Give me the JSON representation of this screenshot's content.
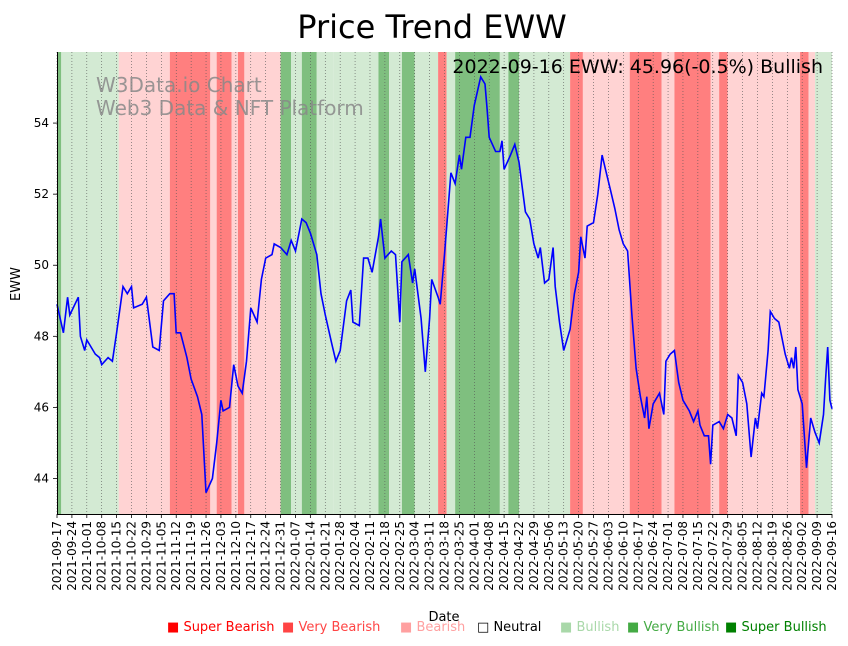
{
  "chart_data": {
    "type": "line",
    "title": "Price Trend EWW",
    "annotation": "2022-09-16 EWW: 45.96(-0.5%) Bullish",
    "watermark_line1": "W3Data.io Chart",
    "watermark_line2": "Web3 Data & NFT Platform",
    "xlabel": "Date",
    "ylabel": "EWW",
    "ylim": [
      43.0,
      56.0
    ],
    "y_ticks": [
      44,
      46,
      48,
      50,
      52,
      54
    ],
    "x_range": [
      "2021-09-17",
      "2022-09-16"
    ],
    "x_ticks": [
      "2021-09-17",
      "2021-09-24",
      "2021-10-01",
      "2021-10-08",
      "2021-10-15",
      "2021-10-22",
      "2021-10-29",
      "2021-11-05",
      "2021-11-12",
      "2021-11-19",
      "2021-11-26",
      "2021-12-03",
      "2021-12-10",
      "2021-12-17",
      "2021-12-24",
      "2021-12-31",
      "2022-01-07",
      "2022-01-14",
      "2022-01-21",
      "2022-01-28",
      "2022-02-04",
      "2022-02-11",
      "2022-02-18",
      "2022-02-25",
      "2022-03-04",
      "2022-03-11",
      "2022-03-18",
      "2022-03-25",
      "2022-04-01",
      "2022-04-08",
      "2022-04-15",
      "2022-04-22",
      "2022-04-29",
      "2022-05-06",
      "2022-05-13",
      "2022-05-20",
      "2022-05-27",
      "2022-06-03",
      "2022-06-10",
      "2022-06-17",
      "2022-06-24",
      "2022-07-01",
      "2022-07-08",
      "2022-07-15",
      "2022-07-22",
      "2022-07-29",
      "2022-08-05",
      "2022-08-12",
      "2022-08-19",
      "2022-08-26",
      "2022-09-02",
      "2022-09-09",
      "2022-09-16"
    ],
    "series": [
      {
        "name": "EWW",
        "color": "#0000ff",
        "points": [
          [
            "2021-09-17",
            48.9
          ],
          [
            "2021-09-20",
            48.1
          ],
          [
            "2021-09-22",
            49.1
          ],
          [
            "2021-09-23",
            48.6
          ],
          [
            "2021-09-27",
            49.1
          ],
          [
            "2021-09-28",
            48.0
          ],
          [
            "2021-09-30",
            47.6
          ],
          [
            "2021-10-01",
            47.9
          ],
          [
            "2021-10-05",
            47.5
          ],
          [
            "2021-10-07",
            47.4
          ],
          [
            "2021-10-08",
            47.2
          ],
          [
            "2021-10-11",
            47.4
          ],
          [
            "2021-10-13",
            47.3
          ],
          [
            "2021-10-15",
            48.1
          ],
          [
            "2021-10-18",
            49.4
          ],
          [
            "2021-10-20",
            49.2
          ],
          [
            "2021-10-22",
            49.4
          ],
          [
            "2021-10-23",
            48.8
          ],
          [
            "2021-10-27",
            48.9
          ],
          [
            "2021-10-29",
            49.1
          ],
          [
            "2021-11-01",
            47.7
          ],
          [
            "2021-11-04",
            47.6
          ],
          [
            "2021-11-06",
            49.0
          ],
          [
            "2021-11-09",
            49.2
          ],
          [
            "2021-11-11",
            49.2
          ],
          [
            "2021-11-12",
            48.1
          ],
          [
            "2021-11-14",
            48.1
          ],
          [
            "2021-11-17",
            47.4
          ],
          [
            "2021-11-19",
            46.8
          ],
          [
            "2021-11-22",
            46.3
          ],
          [
            "2021-11-24",
            45.8
          ],
          [
            "2021-11-26",
            43.6
          ],
          [
            "2021-11-29",
            44.0
          ],
          [
            "2021-12-01",
            45.0
          ],
          [
            "2021-12-03",
            46.2
          ],
          [
            "2021-12-04",
            45.9
          ],
          [
            "2021-12-07",
            46.0
          ],
          [
            "2021-12-09",
            47.2
          ],
          [
            "2021-12-11",
            46.6
          ],
          [
            "2021-12-13",
            46.4
          ],
          [
            "2021-12-15",
            47.3
          ],
          [
            "2021-12-17",
            48.8
          ],
          [
            "2021-12-20",
            48.4
          ],
          [
            "2021-12-22",
            49.6
          ],
          [
            "2021-12-24",
            50.2
          ],
          [
            "2021-12-27",
            50.3
          ],
          [
            "2021-12-28",
            50.6
          ],
          [
            "2021-12-31",
            50.5
          ],
          [
            "2022-01-03",
            50.3
          ],
          [
            "2022-01-05",
            50.7
          ],
          [
            "2022-01-07",
            50.4
          ],
          [
            "2022-01-10",
            51.3
          ],
          [
            "2022-01-12",
            51.2
          ],
          [
            "2022-01-14",
            50.9
          ],
          [
            "2022-01-17",
            50.3
          ],
          [
            "2022-01-19",
            49.2
          ],
          [
            "2022-01-21",
            48.6
          ],
          [
            "2022-01-24",
            47.8
          ],
          [
            "2022-01-26",
            47.3
          ],
          [
            "2022-01-28",
            47.6
          ],
          [
            "2022-01-31",
            49.0
          ],
          [
            "2022-02-02",
            49.3
          ],
          [
            "2022-02-03",
            48.4
          ],
          [
            "2022-02-06",
            48.3
          ],
          [
            "2022-02-08",
            50.2
          ],
          [
            "2022-02-10",
            50.2
          ],
          [
            "2022-02-12",
            49.8
          ],
          [
            "2022-02-15",
            50.8
          ],
          [
            "2022-02-16",
            51.3
          ],
          [
            "2022-02-18",
            50.2
          ],
          [
            "2022-02-21",
            50.4
          ],
          [
            "2022-02-23",
            50.3
          ],
          [
            "2022-02-25",
            48.4
          ],
          [
            "2022-02-26",
            50.1
          ],
          [
            "2022-03-01",
            50.3
          ],
          [
            "2022-03-03",
            49.5
          ],
          [
            "2022-03-04",
            49.9
          ],
          [
            "2022-03-07",
            48.5
          ],
          [
            "2022-03-09",
            47.0
          ],
          [
            "2022-03-11",
            48.5
          ],
          [
            "2022-03-12",
            49.6
          ],
          [
            "2022-03-15",
            49.1
          ],
          [
            "2022-03-16",
            48.9
          ],
          [
            "2022-03-18",
            50.3
          ],
          [
            "2022-03-21",
            52.6
          ],
          [
            "2022-03-23",
            52.3
          ],
          [
            "2022-03-25",
            53.1
          ],
          [
            "2022-03-26",
            52.7
          ],
          [
            "2022-03-28",
            53.6
          ],
          [
            "2022-03-30",
            53.6
          ],
          [
            "2022-04-01",
            54.5
          ],
          [
            "2022-04-04",
            55.3
          ],
          [
            "2022-04-06",
            55.1
          ],
          [
            "2022-04-07",
            54.4
          ],
          [
            "2022-04-08",
            53.6
          ],
          [
            "2022-04-11",
            53.2
          ],
          [
            "2022-04-13",
            53.2
          ],
          [
            "2022-04-14",
            53.5
          ],
          [
            "2022-04-15",
            52.7
          ],
          [
            "2022-04-18",
            53.1
          ],
          [
            "2022-04-20",
            53.4
          ],
          [
            "2022-04-22",
            52.9
          ],
          [
            "2022-04-25",
            51.5
          ],
          [
            "2022-04-27",
            51.3
          ],
          [
            "2022-04-29",
            50.6
          ],
          [
            "2022-05-01",
            50.2
          ],
          [
            "2022-05-02",
            50.5
          ],
          [
            "2022-05-04",
            49.5
          ],
          [
            "2022-05-06",
            49.6
          ],
          [
            "2022-05-08",
            50.5
          ],
          [
            "2022-05-09",
            49.4
          ],
          [
            "2022-05-11",
            48.4
          ],
          [
            "2022-05-13",
            47.6
          ],
          [
            "2022-05-16",
            48.2
          ],
          [
            "2022-05-18",
            49.2
          ],
          [
            "2022-05-20",
            49.8
          ],
          [
            "2022-05-21",
            50.8
          ],
          [
            "2022-05-23",
            50.2
          ],
          [
            "2022-05-24",
            51.1
          ],
          [
            "2022-05-27",
            51.2
          ],
          [
            "2022-05-29",
            52.0
          ],
          [
            "2022-05-31",
            53.1
          ],
          [
            "2022-06-02",
            52.6
          ],
          [
            "2022-06-04",
            52.1
          ],
          [
            "2022-06-06",
            51.6
          ],
          [
            "2022-06-08",
            51.0
          ],
          [
            "2022-06-10",
            50.6
          ],
          [
            "2022-06-12",
            50.4
          ],
          [
            "2022-06-14",
            48.6
          ],
          [
            "2022-06-16",
            47.1
          ],
          [
            "2022-06-18",
            46.3
          ],
          [
            "2022-06-20",
            45.7
          ],
          [
            "2022-06-21",
            46.3
          ],
          [
            "2022-06-22",
            45.4
          ],
          [
            "2022-06-24",
            46.1
          ],
          [
            "2022-06-27",
            46.4
          ],
          [
            "2022-06-29",
            45.8
          ],
          [
            "2022-06-30",
            47.3
          ],
          [
            "2022-07-02",
            47.5
          ],
          [
            "2022-07-04",
            47.6
          ],
          [
            "2022-07-06",
            46.7
          ],
          [
            "2022-07-08",
            46.2
          ],
          [
            "2022-07-11",
            45.9
          ],
          [
            "2022-07-13",
            45.6
          ],
          [
            "2022-07-15",
            45.9
          ],
          [
            "2022-07-16",
            45.5
          ],
          [
            "2022-07-18",
            45.2
          ],
          [
            "2022-07-20",
            45.2
          ],
          [
            "2022-07-21",
            44.4
          ],
          [
            "2022-07-22",
            45.5
          ],
          [
            "2022-07-25",
            45.6
          ],
          [
            "2022-07-27",
            45.4
          ],
          [
            "2022-07-29",
            45.8
          ],
          [
            "2022-07-31",
            45.7
          ],
          [
            "2022-08-02",
            45.2
          ],
          [
            "2022-08-03",
            46.9
          ],
          [
            "2022-08-05",
            46.7
          ],
          [
            "2022-08-07",
            46.1
          ],
          [
            "2022-08-09",
            44.6
          ],
          [
            "2022-08-11",
            45.7
          ],
          [
            "2022-08-12",
            45.4
          ],
          [
            "2022-08-14",
            46.4
          ],
          [
            "2022-08-15",
            46.3
          ],
          [
            "2022-08-17",
            47.6
          ],
          [
            "2022-08-18",
            48.7
          ],
          [
            "2022-08-20",
            48.5
          ],
          [
            "2022-08-22",
            48.4
          ],
          [
            "2022-08-25",
            47.5
          ],
          [
            "2022-08-27",
            47.1
          ],
          [
            "2022-08-28",
            47.4
          ],
          [
            "2022-08-29",
            47.1
          ],
          [
            "2022-08-30",
            47.7
          ],
          [
            "2022-08-31",
            46.5
          ],
          [
            "2022-09-02",
            46.1
          ],
          [
            "2022-09-04",
            44.3
          ],
          [
            "2022-09-06",
            45.7
          ],
          [
            "2022-09-08",
            45.3
          ],
          [
            "2022-09-10",
            45.0
          ],
          [
            "2022-09-12",
            45.8
          ],
          [
            "2022-09-13",
            46.8
          ],
          [
            "2022-09-14",
            47.7
          ],
          [
            "2022-09-15",
            46.2
          ],
          [
            "2022-09-16",
            45.96
          ]
        ]
      }
    ],
    "bands": [
      [
        "2021-09-17",
        "2021-09-19",
        "very_bullish"
      ],
      [
        "2021-09-19",
        "2021-10-16",
        "bullish"
      ],
      [
        "2021-10-16",
        "2021-11-09",
        "bearish"
      ],
      [
        "2021-11-09",
        "2021-11-28",
        "very_bearish"
      ],
      [
        "2021-11-28",
        "2021-12-01",
        "bearish"
      ],
      [
        "2021-12-01",
        "2021-12-08",
        "very_bearish"
      ],
      [
        "2021-12-08",
        "2021-12-11",
        "bearish"
      ],
      [
        "2021-12-11",
        "2021-12-14",
        "very_bearish"
      ],
      [
        "2021-12-14",
        "2021-12-31",
        "bearish"
      ],
      [
        "2021-12-31",
        "2022-01-05",
        "very_bullish"
      ],
      [
        "2022-01-05",
        "2022-01-10",
        "bullish"
      ],
      [
        "2022-01-10",
        "2022-01-17",
        "very_bullish"
      ],
      [
        "2022-01-17",
        "2022-01-25",
        "bullish"
      ],
      [
        "2022-01-25",
        "2022-02-15",
        "bullish"
      ],
      [
        "2022-02-15",
        "2022-02-20",
        "very_bullish"
      ],
      [
        "2022-02-20",
        "2022-02-26",
        "bullish"
      ],
      [
        "2022-02-26",
        "2022-03-04",
        "very_bullish"
      ],
      [
        "2022-03-04",
        "2022-03-15",
        "bullish"
      ],
      [
        "2022-03-15",
        "2022-03-19",
        "very_bearish"
      ],
      [
        "2022-03-19",
        "2022-03-23",
        "bullish"
      ],
      [
        "2022-03-23",
        "2022-04-13",
        "very_bullish"
      ],
      [
        "2022-04-13",
        "2022-04-17",
        "bullish"
      ],
      [
        "2022-04-17",
        "2022-04-22",
        "very_bullish"
      ],
      [
        "2022-04-22",
        "2022-05-16",
        "bullish"
      ],
      [
        "2022-05-16",
        "2022-05-22",
        "very_bearish"
      ],
      [
        "2022-05-22",
        "2022-06-13",
        "bearish"
      ],
      [
        "2022-06-13",
        "2022-06-28",
        "very_bearish"
      ],
      [
        "2022-06-28",
        "2022-07-04",
        "bearish"
      ],
      [
        "2022-07-04",
        "2022-07-21",
        "very_bearish"
      ],
      [
        "2022-07-21",
        "2022-07-25",
        "bearish"
      ],
      [
        "2022-07-25",
        "2022-07-29",
        "very_bearish"
      ],
      [
        "2022-07-29",
        "2022-09-01",
        "bearish"
      ],
      [
        "2022-09-01",
        "2022-09-05",
        "very_bearish"
      ],
      [
        "2022-09-05",
        "2022-09-08",
        "bearish"
      ],
      [
        "2022-09-08",
        "2022-09-16",
        "bullish"
      ]
    ],
    "band_colors": {
      "bearish": "#ffd3d3",
      "very_bearish": "#ff7f7f",
      "bullish": "#d3ead3",
      "very_bullish": "#7fbf7f"
    },
    "legend": [
      {
        "label": "Super Bearish",
        "color": "#ff0000",
        "marker": "■"
      },
      {
        "label": "Very Bearish",
        "color": "#ff4444",
        "marker": "■"
      },
      {
        "label": "Bearish",
        "color": "#ffa0a0",
        "marker": "■"
      },
      {
        "label": "Neutral",
        "color": "#000000",
        "marker": "□"
      },
      {
        "label": "Bullish",
        "color": "#a9d8a9",
        "marker": "■"
      },
      {
        "label": "Very Bullish",
        "color": "#44aa44",
        "marker": "■"
      },
      {
        "label": "Super Bullish",
        "color": "#008000",
        "marker": "■"
      }
    ]
  }
}
